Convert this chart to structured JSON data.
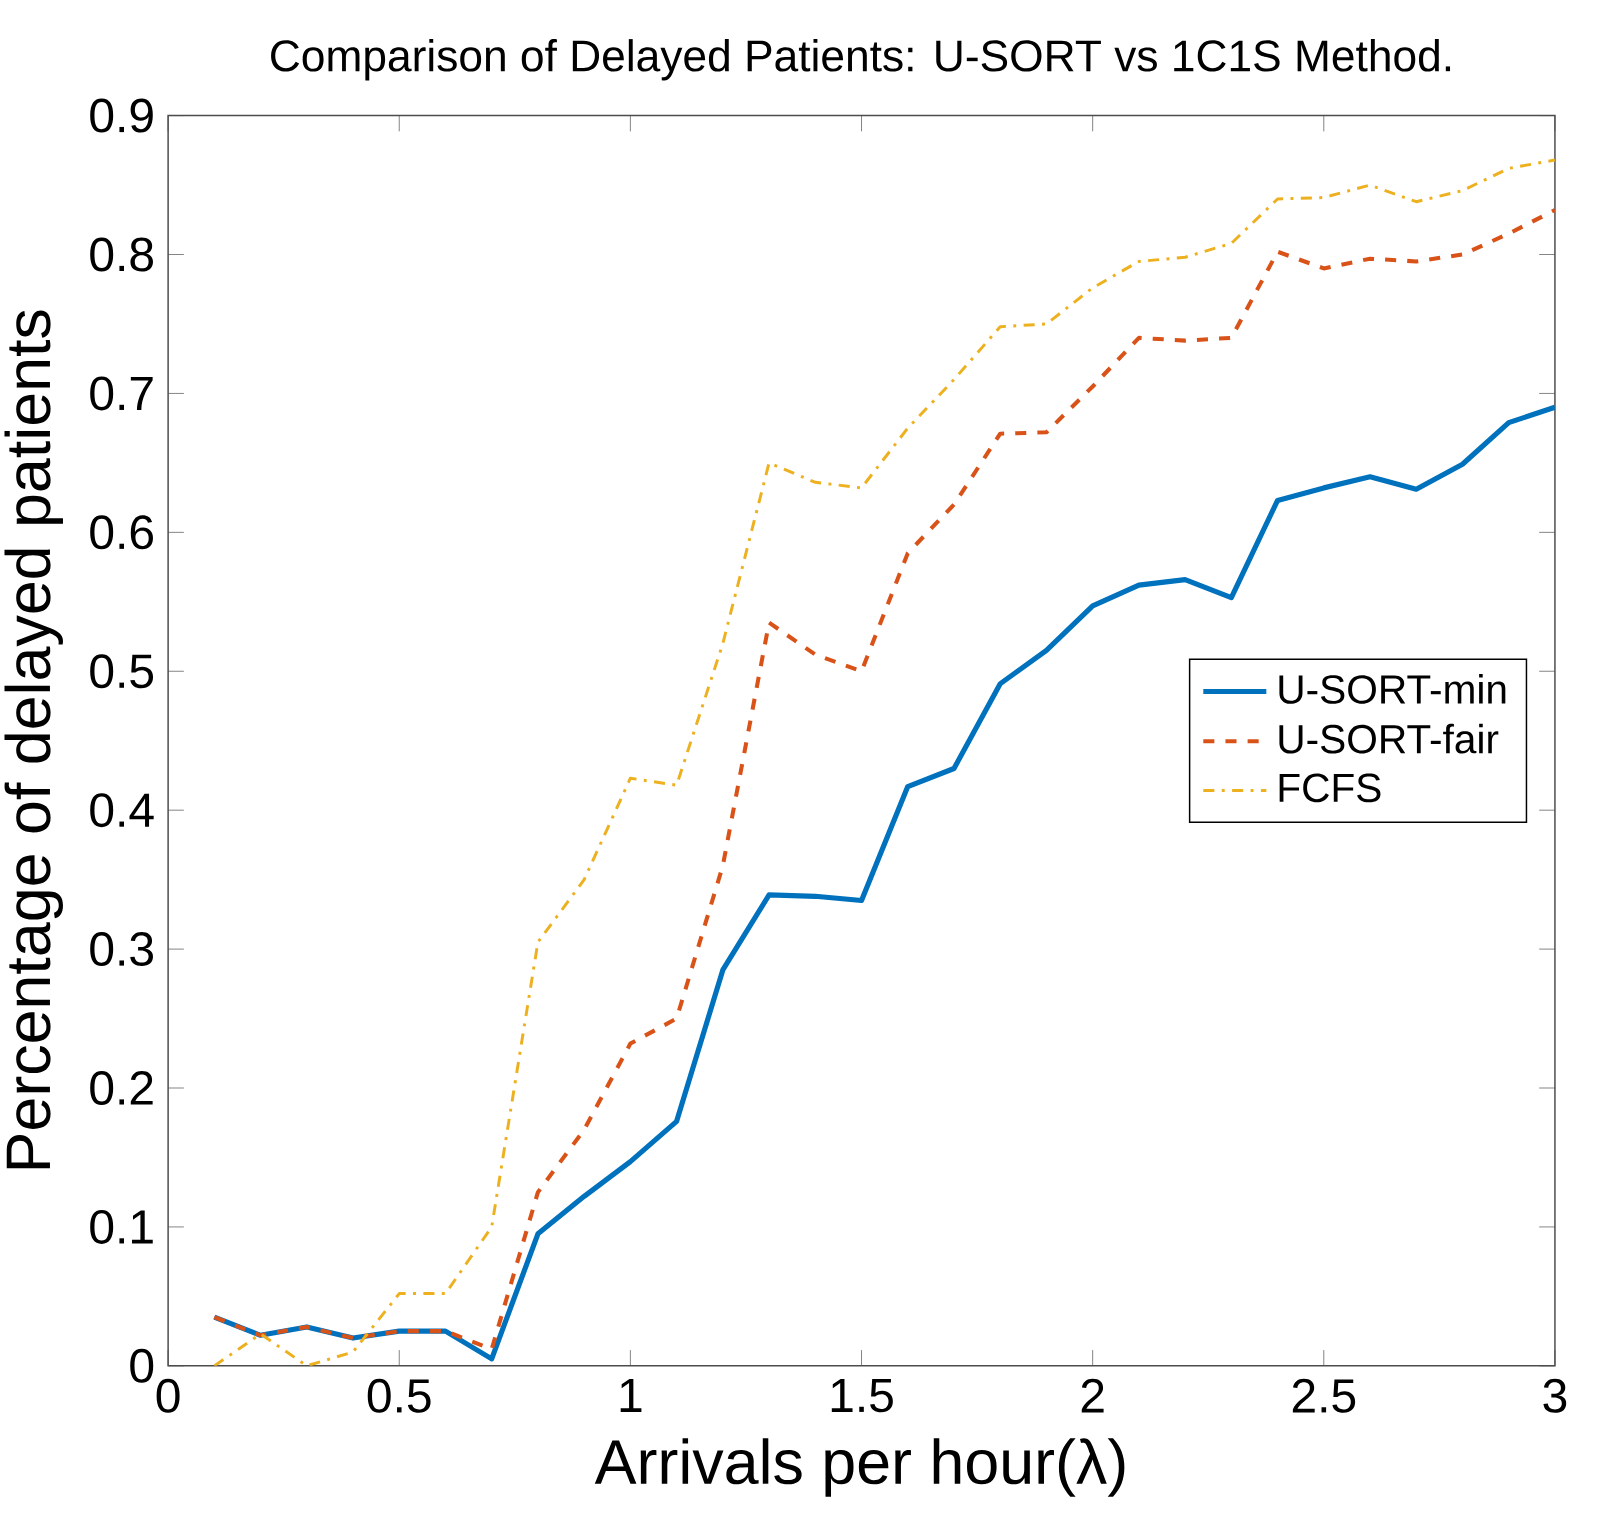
{
  "chart_data": {
    "type": "line",
    "title": "Comparison of Delayed Patients: U-SORT vs 1C1S Method.",
    "xlabel": "Arrivals per hour(λ)",
    "ylabel": "Percentage of delayed patients",
    "x": [
      0.1,
      0.2,
      0.3,
      0.4,
      0.5,
      0.6,
      0.7,
      0.8,
      0.9,
      1.0,
      1.1,
      1.2,
      1.3,
      1.4,
      1.5,
      1.6,
      1.7,
      1.8,
      1.9,
      2.0,
      2.1,
      2.2,
      2.3,
      2.4,
      2.5,
      2.6,
      2.7,
      2.8,
      2.9,
      3.0
    ],
    "series": [
      {
        "name": "U-SORT-min",
        "color": "#0072bd",
        "line_style": "solid",
        "values": [
          0.035,
          0.022,
          0.028,
          0.02,
          0.025,
          0.025,
          0.005,
          0.095,
          0.122,
          0.147,
          0.176,
          0.285,
          0.339,
          0.338,
          0.335,
          0.417,
          0.43,
          0.491,
          0.515,
          0.547,
          0.562,
          0.566,
          0.553,
          0.623,
          0.632,
          0.64,
          0.631,
          0.649,
          0.679,
          0.69
        ]
      },
      {
        "name": "U-SORT-fair",
        "color": "#d95319",
        "line_style": "dashed",
        "values": [
          0.035,
          0.022,
          0.028,
          0.02,
          0.025,
          0.025,
          0.012,
          0.125,
          0.17,
          0.232,
          0.25,
          0.36,
          0.535,
          0.512,
          0.5,
          0.585,
          0.62,
          0.671,
          0.672,
          0.705,
          0.74,
          0.738,
          0.74,
          0.802,
          0.79,
          0.797,
          0.795,
          0.8,
          0.815,
          0.832
        ]
      },
      {
        "name": "FCFS",
        "color": "#edb120",
        "line_style": "dashdot",
        "values": [
          0,
          0.023,
          0,
          0.01,
          0.052,
          0.052,
          0.1,
          0.305,
          0.35,
          0.423,
          0.418,
          0.52,
          0.65,
          0.636,
          0.632,
          0.675,
          0.71,
          0.748,
          0.75,
          0.776,
          0.795,
          0.798,
          0.808,
          0.84,
          0.841,
          0.85,
          0.838,
          0.846,
          0.862,
          0.868
        ]
      }
    ],
    "xlim": [
      0,
      3
    ],
    "ylim": [
      0,
      0.9
    ],
    "xticks": [
      0,
      0.5,
      1,
      1.5,
      2,
      2.5,
      3
    ],
    "yticks": [
      0,
      0.1,
      0.2,
      0.3,
      0.4,
      0.5,
      0.6,
      0.7,
      0.8,
      0.9
    ],
    "grid": false,
    "legend": "right",
    "marker": "none"
  }
}
